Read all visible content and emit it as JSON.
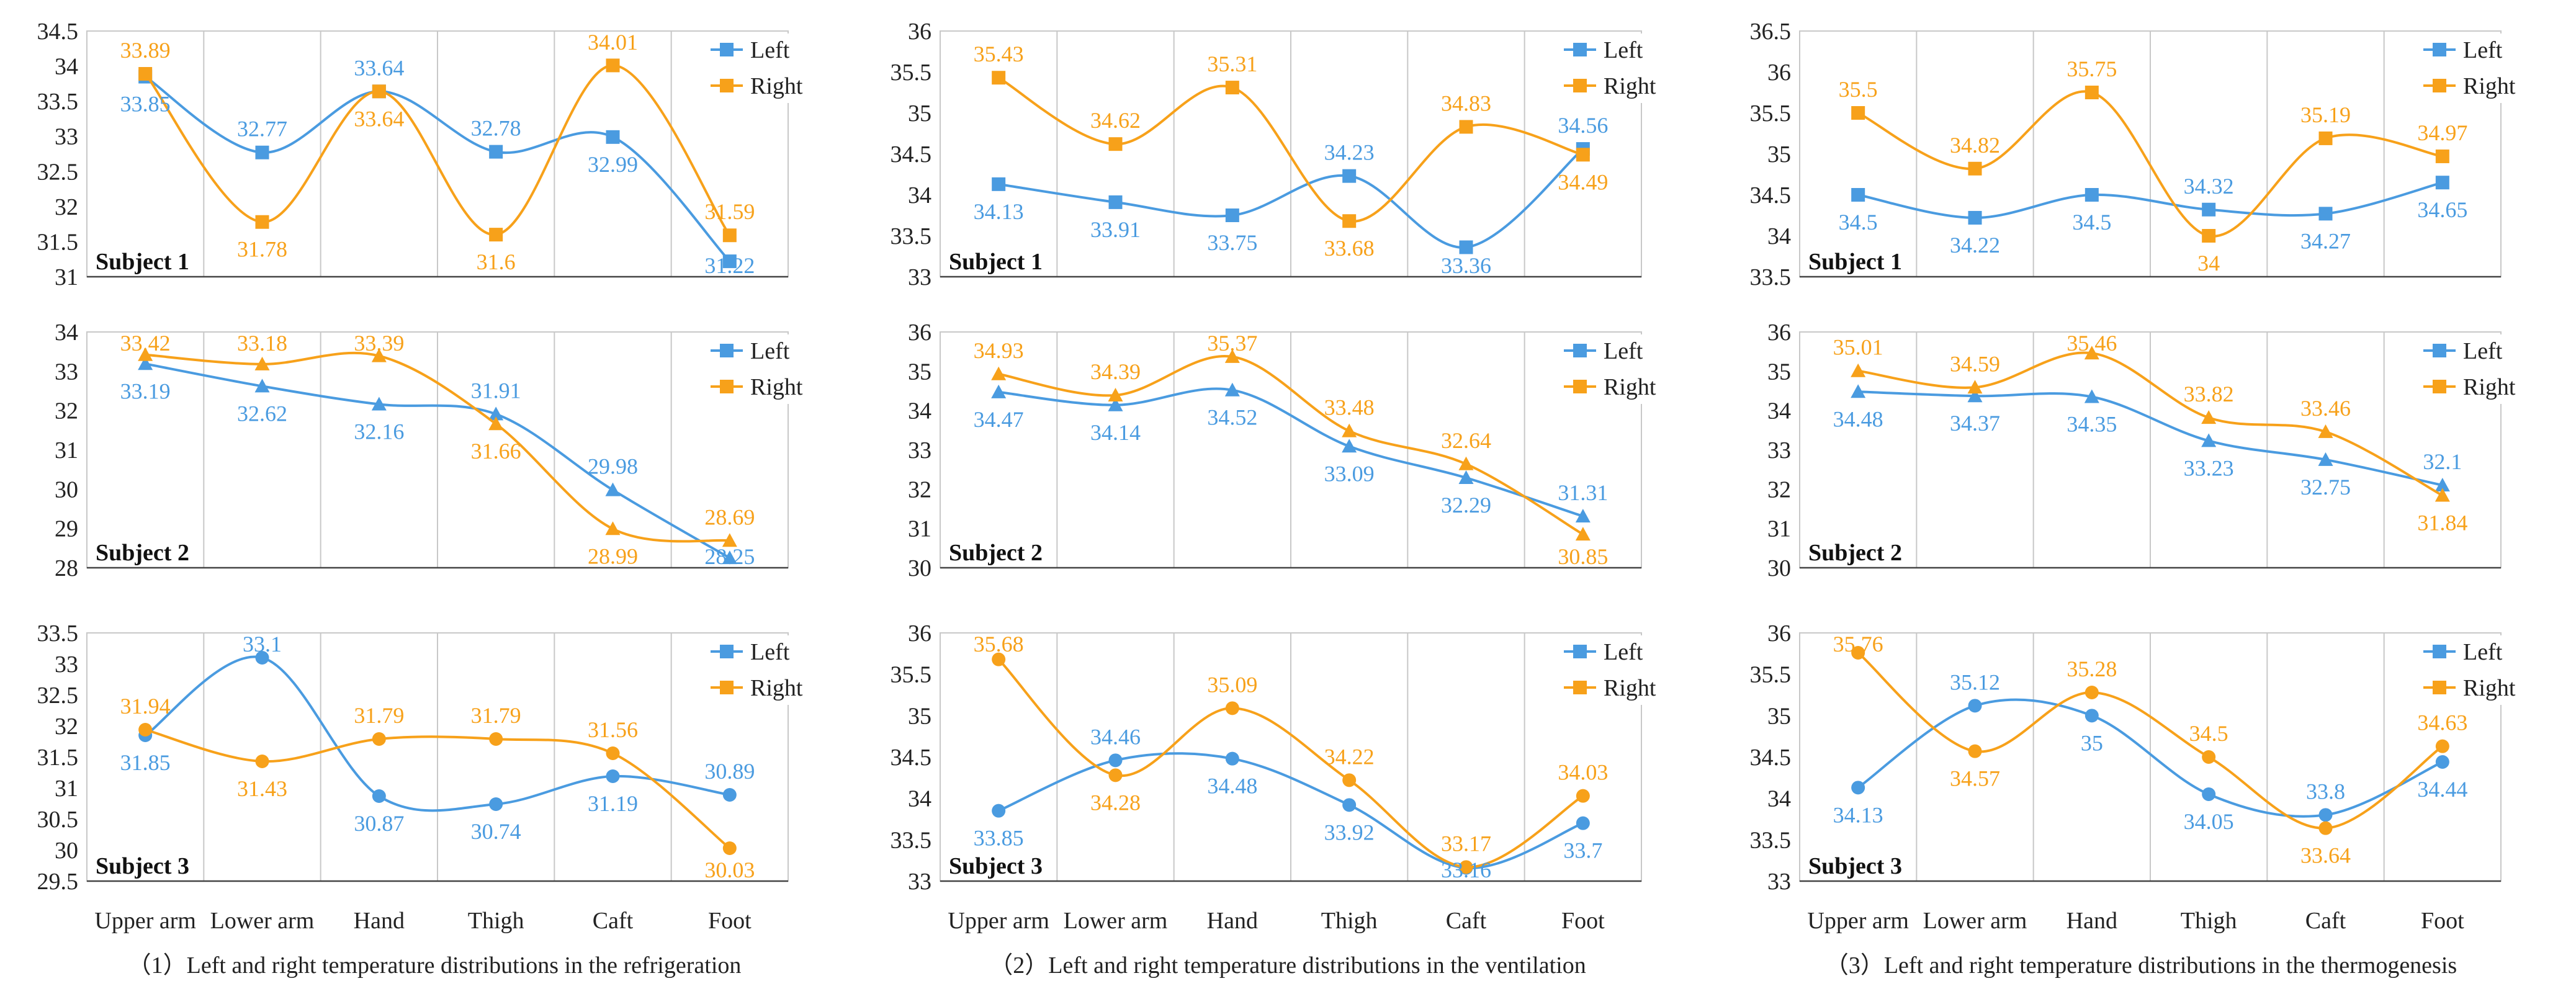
{
  "colors": {
    "left": "#4A9BE0",
    "right": "#F7A11A",
    "grid": "#c8c8c8",
    "axis": "#444444",
    "text": "#222222"
  },
  "legend_labels": {
    "left": "Left",
    "right": "Right"
  },
  "categories": [
    "Upper arm",
    "Lower arm",
    "Hand",
    "Thigh",
    "Caft",
    "Foot"
  ],
  "captions": [
    "（1）Left and right temperature distributions in the refrigeration",
    "（2）Left and right temperature distributions in the ventilation",
    "（3）Left and right temperature distributions in the thermogenesis"
  ],
  "chart_data": [
    {
      "type": "line",
      "column": 0,
      "row": 0,
      "subject": "Subject 1",
      "marker": "square",
      "ylim": [
        31,
        34.5
      ],
      "yticks": [
        31,
        31.5,
        32,
        32.5,
        33,
        33.5,
        34,
        34.5
      ],
      "series": [
        {
          "name": "Left",
          "values": [
            33.85,
            32.77,
            33.64,
            32.78,
            32.99,
            31.22
          ]
        },
        {
          "name": "Right",
          "values": [
            33.89,
            31.78,
            33.64,
            31.6,
            34.01,
            31.59
          ]
        }
      ]
    },
    {
      "type": "line",
      "column": 0,
      "row": 1,
      "subject": "Subject 2",
      "marker": "triangle",
      "ylim": [
        28,
        34
      ],
      "yticks": [
        28,
        29,
        30,
        31,
        32,
        33,
        34
      ],
      "series": [
        {
          "name": "Left",
          "values": [
            33.19,
            32.62,
            32.16,
            31.91,
            29.98,
            28.25
          ]
        },
        {
          "name": "Right",
          "values": [
            33.42,
            33.18,
            33.39,
            31.66,
            28.99,
            28.69
          ]
        }
      ]
    },
    {
      "type": "line",
      "column": 0,
      "row": 2,
      "subject": "Subject 3",
      "marker": "circle",
      "ylim": [
        29.5,
        33.5
      ],
      "yticks": [
        29.5,
        30,
        30.5,
        31,
        31.5,
        32,
        32.5,
        33,
        33.5
      ],
      "series": [
        {
          "name": "Left",
          "values": [
            31.85,
            33.1,
            30.87,
            30.74,
            31.19,
            30.89
          ]
        },
        {
          "name": "Right",
          "values": [
            31.94,
            31.43,
            31.79,
            31.79,
            31.56,
            30.03
          ]
        }
      ]
    },
    {
      "type": "line",
      "column": 1,
      "row": 0,
      "subject": "Subject 1",
      "marker": "square",
      "ylim": [
        33,
        36
      ],
      "yticks": [
        33,
        33.5,
        34,
        34.5,
        35,
        35.5,
        36
      ],
      "series": [
        {
          "name": "Left",
          "values": [
            34.13,
            33.91,
            33.75,
            34.23,
            33.36,
            34.56
          ]
        },
        {
          "name": "Right",
          "values": [
            35.43,
            34.62,
            35.31,
            33.68,
            34.83,
            34.49
          ]
        }
      ]
    },
    {
      "type": "line",
      "column": 1,
      "row": 1,
      "subject": "Subject 2",
      "marker": "triangle",
      "ylim": [
        30,
        36
      ],
      "yticks": [
        30,
        31,
        32,
        33,
        34,
        35,
        36
      ],
      "series": [
        {
          "name": "Left",
          "values": [
            34.47,
            34.14,
            34.52,
            33.09,
            32.29,
            31.31
          ]
        },
        {
          "name": "Right",
          "values": [
            34.93,
            34.39,
            35.37,
            33.48,
            32.64,
            30.85
          ]
        }
      ]
    },
    {
      "type": "line",
      "column": 1,
      "row": 2,
      "subject": "Subject 3",
      "marker": "circle",
      "ylim": [
        33,
        36
      ],
      "yticks": [
        33,
        33.5,
        34,
        34.5,
        35,
        35.5,
        36
      ],
      "series": [
        {
          "name": "Left",
          "values": [
            33.85,
            34.46,
            34.48,
            33.92,
            33.16,
            33.7
          ]
        },
        {
          "name": "Right",
          "values": [
            35.68,
            34.28,
            35.09,
            34.22,
            33.17,
            34.03
          ]
        }
      ]
    },
    {
      "type": "line",
      "column": 2,
      "row": 0,
      "subject": "Subject 1",
      "marker": "square",
      "ylim": [
        33.5,
        36.5
      ],
      "yticks": [
        33.5,
        34,
        34.5,
        35,
        35.5,
        36,
        36.5
      ],
      "series": [
        {
          "name": "Left",
          "values": [
            34.5,
            34.22,
            34.5,
            34.32,
            34.27,
            34.65
          ]
        },
        {
          "name": "Right",
          "values": [
            35.5,
            34.82,
            35.75,
            34,
            35.19,
            34.97
          ]
        }
      ]
    },
    {
      "type": "line",
      "column": 2,
      "row": 1,
      "subject": "Subject 2",
      "marker": "triangle",
      "ylim": [
        30,
        36
      ],
      "yticks": [
        30,
        31,
        32,
        33,
        34,
        35,
        36
      ],
      "series": [
        {
          "name": "Left",
          "values": [
            34.48,
            34.37,
            34.35,
            33.23,
            32.75,
            32.1
          ]
        },
        {
          "name": "Right",
          "values": [
            35.01,
            34.59,
            35.46,
            33.82,
            33.46,
            31.84
          ]
        }
      ]
    },
    {
      "type": "line",
      "column": 2,
      "row": 2,
      "subject": "Subject 3",
      "marker": "circle",
      "ylim": [
        33,
        36
      ],
      "yticks": [
        33,
        33.5,
        34,
        34.5,
        35,
        35.5,
        36
      ],
      "series": [
        {
          "name": "Left",
          "values": [
            34.13,
            35.12,
            35,
            34.05,
            33.8,
            34.44
          ]
        },
        {
          "name": "Right",
          "values": [
            35.76,
            34.57,
            35.28,
            34.5,
            33.64,
            34.63
          ]
        }
      ]
    }
  ]
}
